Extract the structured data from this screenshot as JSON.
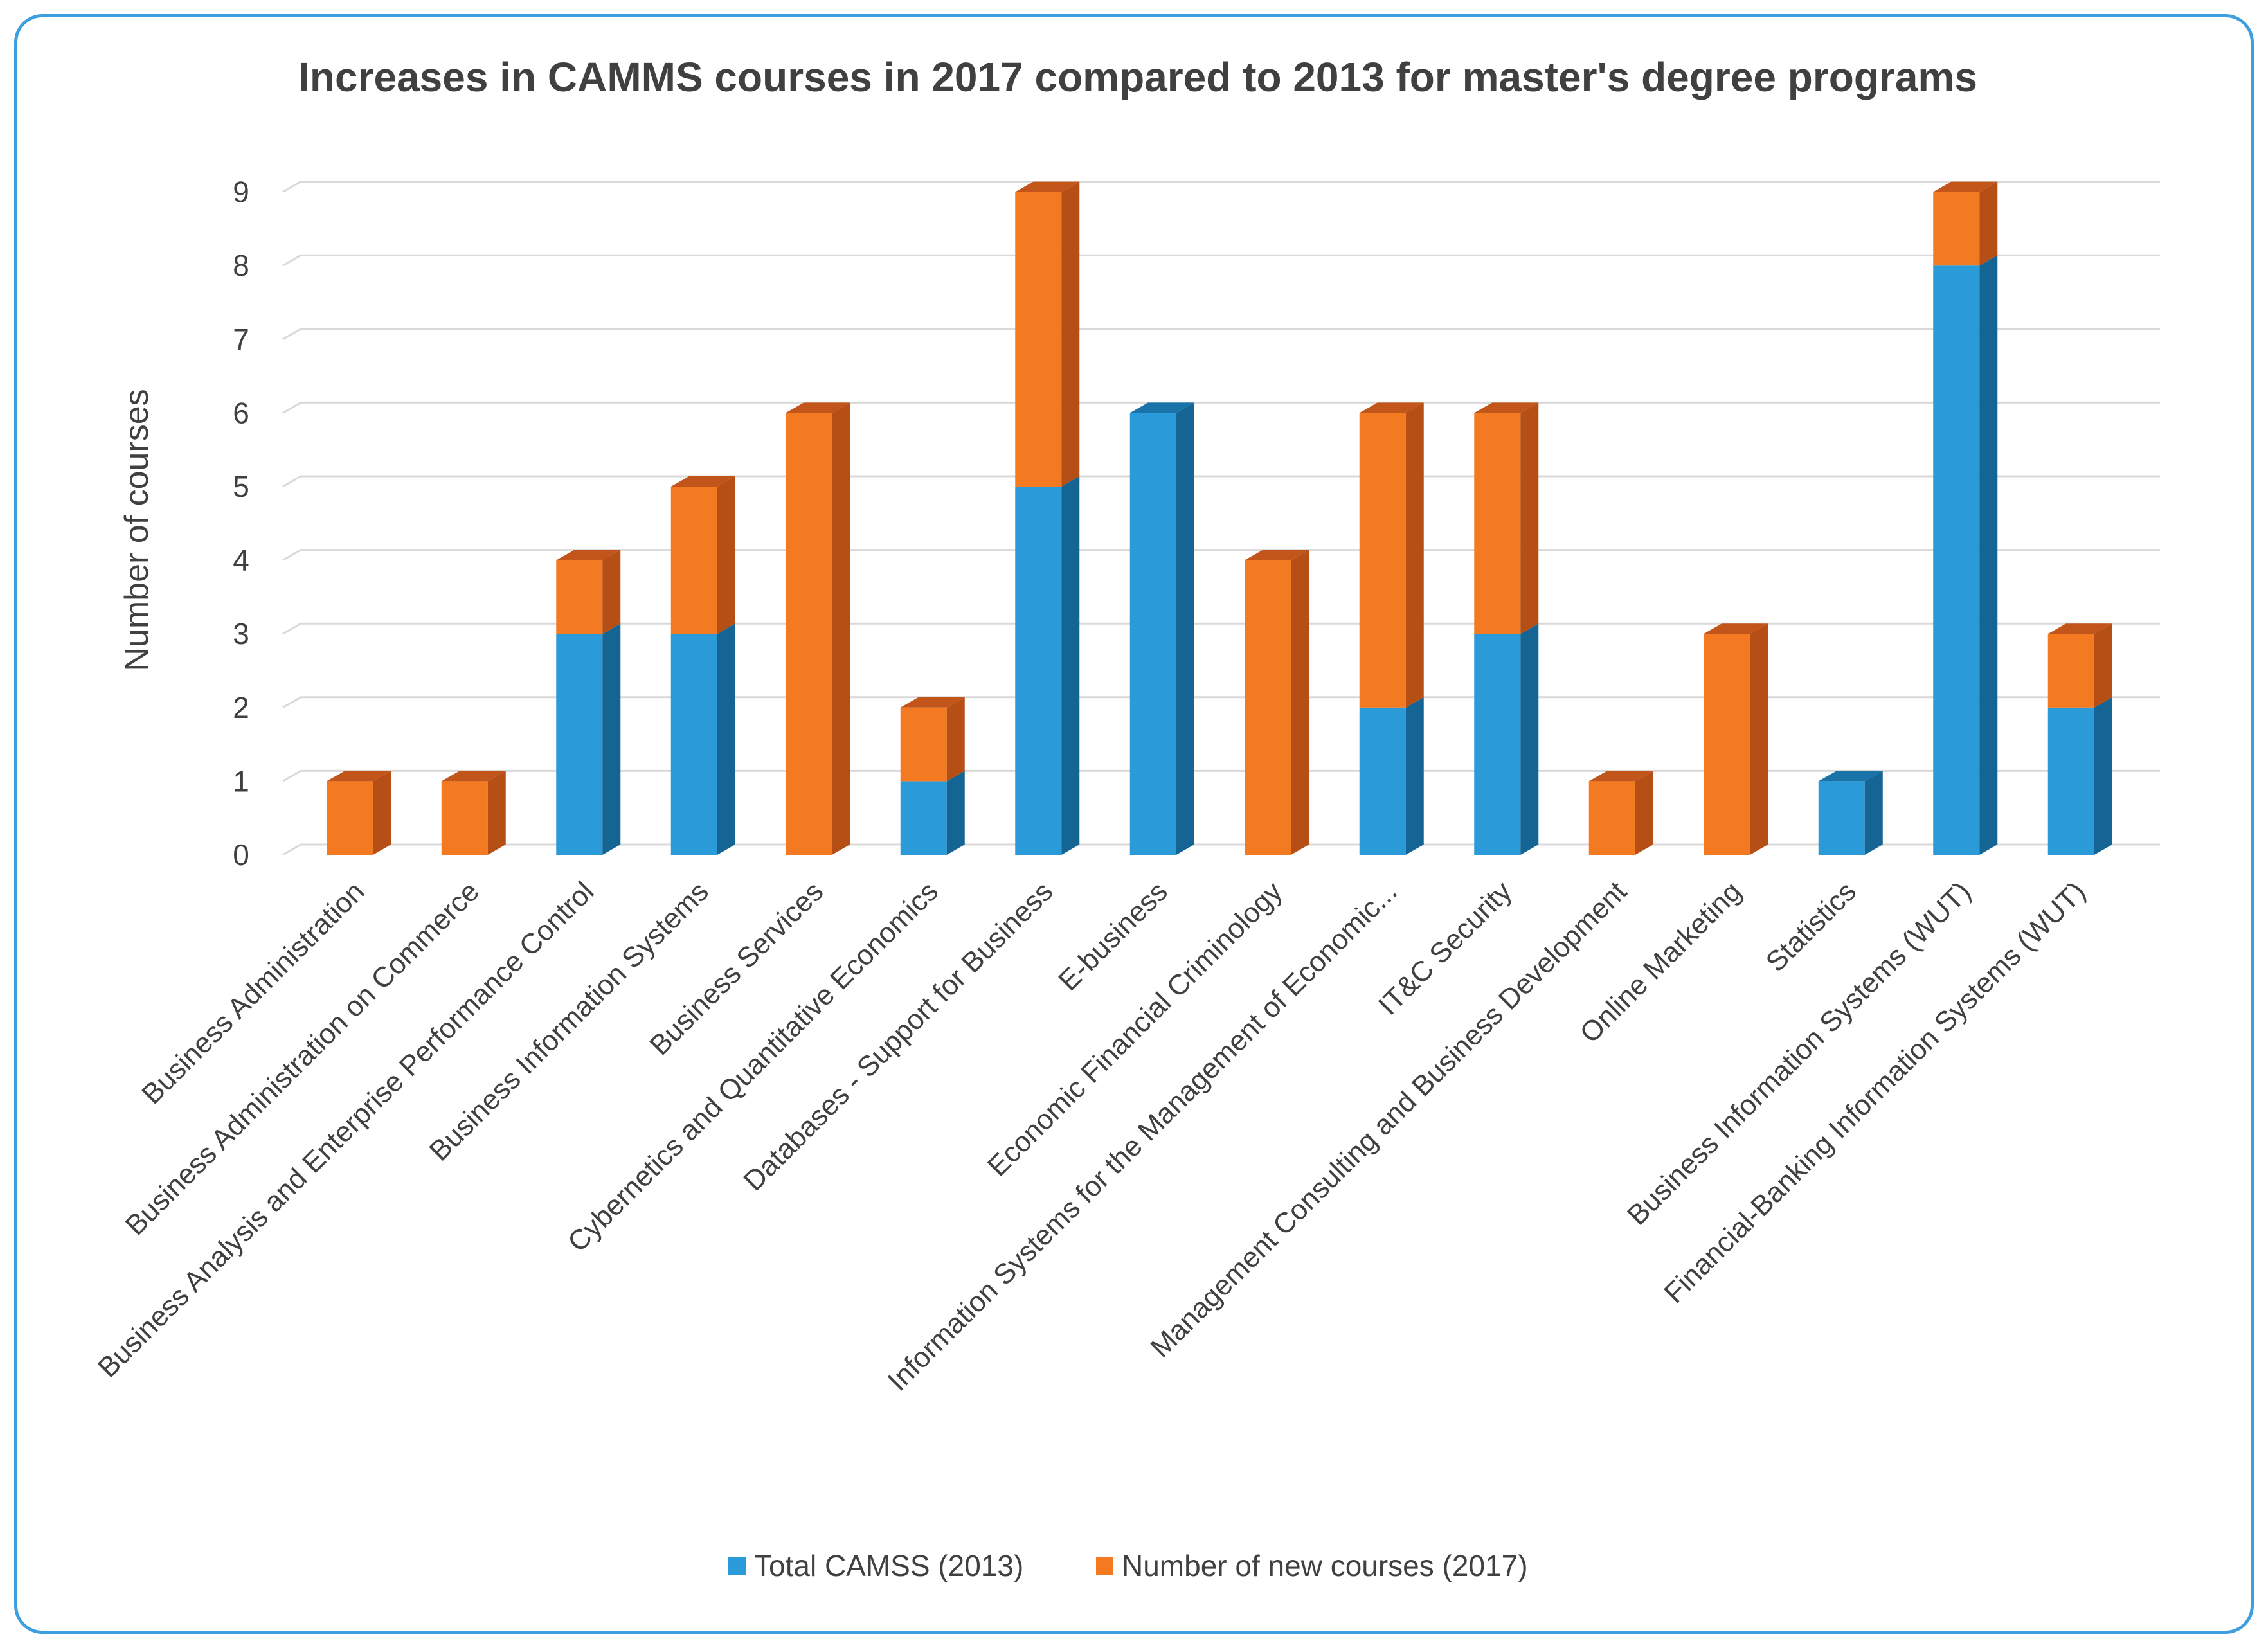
{
  "chart_data": {
    "type": "bar",
    "stacked": true,
    "three_d": true,
    "title": "Increases in CAMMS courses in 2017 compared  to 2013 for master's degree programs",
    "xlabel": "",
    "ylabel": "Number of courses",
    "ylim": [
      0,
      9
    ],
    "yticks": [
      "0",
      "1",
      "2",
      "3",
      "4",
      "5",
      "6",
      "7",
      "8",
      "9"
    ],
    "grid": true,
    "legend_position": "bottom",
    "categories": [
      "Business Administration",
      "Business Administration on Commerce",
      "Business Analysis and Enterprise Performance Control",
      "Business Information Systems",
      "Business Services",
      "Cybernetics and Quantitative Economics",
      "Databases - Support for Business",
      "E-business",
      "Economic Financial Criminology",
      "Information Systems for the Management of Economic...",
      "IT&C Security",
      "Management Consulting and Business Development",
      "Online Marketing",
      "Statistics",
      "Business Information Systems (WUT)",
      "Financial-Banking Information Systems (WUT)"
    ],
    "series": [
      {
        "name": "Total CAMSS (2013)",
        "color": "#2a9ad8",
        "top_color": "#1a73a8",
        "side_color": "#156594",
        "values": [
          0,
          0,
          3,
          3,
          0,
          1,
          5,
          6,
          0,
          2,
          3,
          0,
          0,
          1,
          8,
          2
        ]
      },
      {
        "name": "Number of new courses (2017)",
        "color": "#f47a22",
        "top_color": "#c2551a",
        "side_color": "#b64f16",
        "values": [
          1,
          1,
          1,
          2,
          6,
          1,
          4,
          0,
          4,
          4,
          3,
          1,
          3,
          0,
          1,
          1
        ]
      }
    ]
  }
}
